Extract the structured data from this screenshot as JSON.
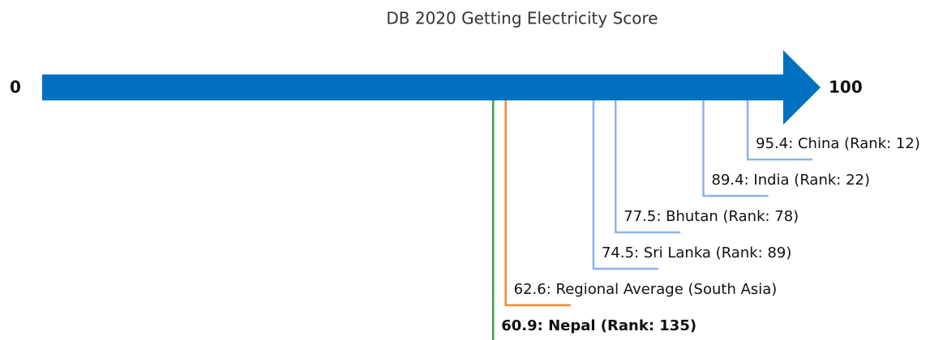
{
  "chart_data": {
    "type": "scale",
    "title": "DB 2020 Getting Electricity Score",
    "xlim": [
      0,
      100
    ],
    "xticks": [
      0,
      100
    ],
    "arrow_color": "#0070c0",
    "values": [
      60.9,
      62.6,
      74.5,
      77.5,
      89.4,
      95.4
    ],
    "value_labels": [
      "60.9: Nepal (Rank: 135)",
      "62.6: Regional Average (South Asia)",
      "74.5: Sri Lanka (Rank: 89)",
      "77.5: Bhutan (Rank: 78)",
      "89.4: India (Rank: 22)",
      "95.4: China (Rank: 12)"
    ],
    "colors": [
      "#3a9c4b",
      "#ee8a33",
      "#8db3e8",
      "#8db3e8",
      "#8db3e8",
      "#8db3e8"
    ],
    "bold": [
      true,
      false,
      false,
      false,
      false,
      false
    ]
  }
}
